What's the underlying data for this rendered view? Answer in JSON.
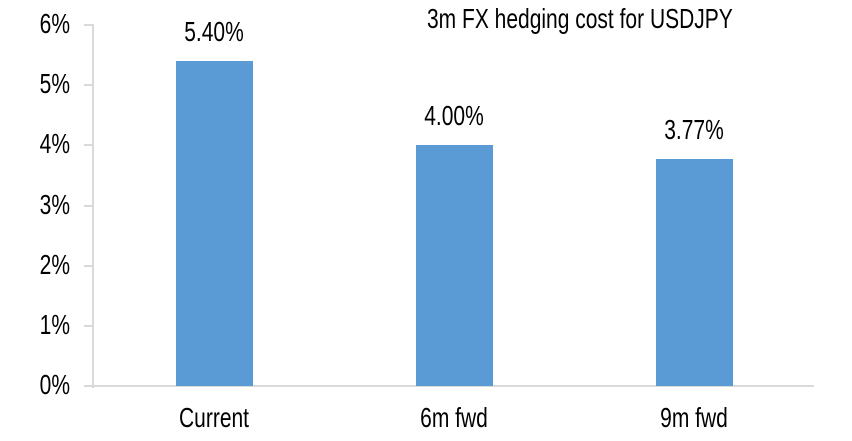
{
  "chart_data": {
    "type": "bar",
    "title": "3m FX hedging cost for USDJPY",
    "categories": [
      "Current",
      "6m fwd",
      "9m fwd"
    ],
    "values": [
      5.4,
      4.0,
      3.77
    ],
    "data_labels": [
      "5.40%",
      "4.00%",
      "3.77%"
    ],
    "xlabel": "",
    "ylabel": "",
    "ylim": [
      0,
      6
    ],
    "y_tick_values": [
      0,
      1,
      2,
      3,
      4,
      5,
      6
    ],
    "y_tick_labels": [
      "0%",
      "1%",
      "2%",
      "3%",
      "4%",
      "5%",
      "6%"
    ],
    "grid": false,
    "legend_position": "none",
    "bar_color": "#5B9BD5",
    "axis_color": "#D9D9D9",
    "text_color": "#000000",
    "background_color": "#FFFFFF"
  }
}
